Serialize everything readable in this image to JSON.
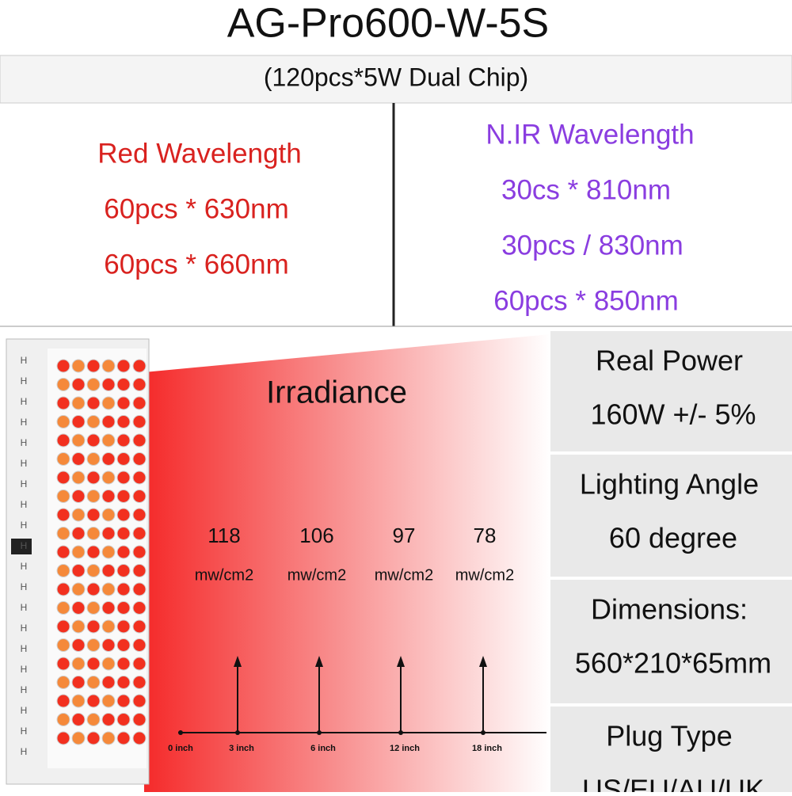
{
  "header": {
    "title": "AG-Pro600-W-5S",
    "subtitle": "(120pcs*5W Dual Chip)"
  },
  "red": {
    "title": "Red Wavelength",
    "lines": [
      "60pcs * 630nm",
      "60pcs * 660nm"
    ]
  },
  "nir": {
    "title": "N.IR Wavelength",
    "lines": [
      "30cs * 810nm",
      "30pcs / 830nm",
      "60pcs * 850nm"
    ]
  },
  "irradiance": {
    "title": "Irradiance",
    "origin": "0 inch",
    "readings": [
      {
        "value": 118,
        "unit": "mw/cm2",
        "distance": "3 inch"
      },
      {
        "value": 106,
        "unit": "mw/cm2",
        "distance": "6 inch"
      },
      {
        "value": 97,
        "unit": "mw/cm2",
        "distance": "12 inch"
      },
      {
        "value": 78,
        "unit": "mw/cm2",
        "distance": "18 inch"
      }
    ]
  },
  "specs": [
    {
      "label": "Real Power",
      "value": "160W +/- 5%"
    },
    {
      "label": "Lighting Angle",
      "value": "60 degree"
    },
    {
      "label": "Dimensions:",
      "value": "560*210*65mm"
    },
    {
      "label": "Plug Type",
      "value": "US/EU/AU/UK"
    }
  ]
}
